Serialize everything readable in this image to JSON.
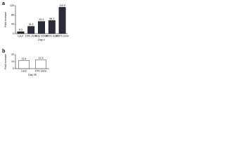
{
  "chart_data": [
    {
      "type": "bar",
      "panel": "a",
      "ylabel": "Fold increase",
      "xlabel": "Day 4",
      "categories": [
        "LacZ",
        "10% clone",
        "Poly VEGF",
        "100% clone",
        "325% clone"
      ],
      "values": [
        8.3,
        31.2,
        52.2,
        56.1,
        112.9
      ],
      "color": "#2b2b3a",
      "ylim": [
        0,
        120
      ],
      "yticks": [
        0,
        40,
        80,
        120
      ]
    },
    {
      "type": "bar",
      "panel": "b",
      "ylabel": "Fold increase",
      "xlabel": "Day 28",
      "categories": [
        "LacZ",
        "10% clone"
      ],
      "values": [
        11.6,
        12.3
      ],
      "color": "#ffffff",
      "ylim": [
        0,
        20
      ],
      "yticks": [
        0,
        10,
        20
      ]
    }
  ]
}
